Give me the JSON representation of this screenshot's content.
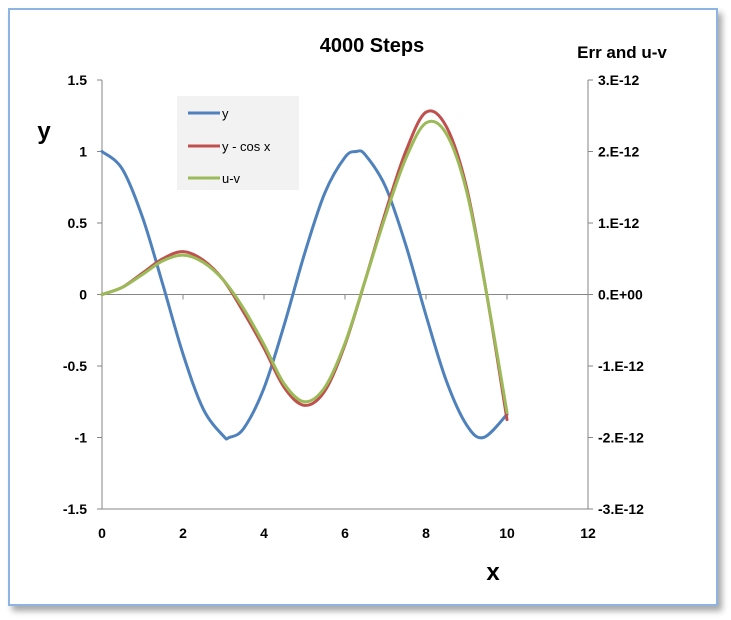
{
  "chart_data": {
    "type": "line",
    "title": "4000 Steps",
    "xlabel": "x",
    "ylabel": "y",
    "y2label": "Err and u-v",
    "xlim": [
      0,
      12
    ],
    "ylim": [
      -1.5,
      1.5
    ],
    "y2lim": [
      -3e-12,
      3e-12
    ],
    "x_ticks": [
      "0",
      "2",
      "4",
      "6",
      "8",
      "10",
      "12"
    ],
    "y_ticks": [
      "1.5",
      "1",
      "0.5",
      "0",
      "-0.5",
      "-1",
      "-1.5"
    ],
    "y2_ticks": [
      "3.E-12",
      "2.E-12",
      "1.E-12",
      "0.E+00",
      "-1.E-12",
      "-2.E-12",
      "-3.E-12"
    ],
    "grid": false,
    "legend_position": "top-left inside",
    "colors": {
      "y": "#4f81bd",
      "y_minus_cos": "#c0504d",
      "u_minus_v": "#9bbb59"
    },
    "series": [
      {
        "name": "y",
        "axis": "left",
        "x": [
          0,
          0.5,
          1,
          1.5,
          2,
          2.5,
          3,
          3.14,
          3.5,
          4,
          4.5,
          5,
          5.5,
          6,
          6.28,
          6.5,
          7,
          7.5,
          8,
          8.5,
          9,
          9.42,
          10
        ],
        "values": [
          1,
          0.878,
          0.54,
          0.071,
          -0.416,
          -0.801,
          -0.99,
          -1.0,
          -0.936,
          -0.654,
          -0.211,
          0.284,
          0.709,
          0.96,
          1.0,
          0.977,
          0.754,
          0.347,
          -0.146,
          -0.602,
          -0.911,
          -1.0,
          -0.839
        ]
      },
      {
        "name": "y - cos x",
        "axis": "right",
        "x": [
          0,
          0.5,
          1,
          1.5,
          2,
          2.5,
          3,
          3.5,
          4,
          4.5,
          5,
          5.5,
          6,
          6.5,
          7,
          7.5,
          8,
          8.5,
          9,
          9.5,
          10
        ],
        "values": [
          0,
          1e-13,
          3e-13,
          5e-13,
          6e-13,
          4.8e-13,
          2e-13,
          -2.5e-13,
          -7.5e-13,
          -1.3e-12,
          -1.55e-12,
          -1.35e-12,
          -7e-13,
          2e-13,
          1.15e-12,
          2e-12,
          2.55e-12,
          2.35e-12,
          1.5e-12,
          0.0,
          -1.75e-12
        ]
      },
      {
        "name": "u-v",
        "axis": "right",
        "x": [
          0,
          0.5,
          1,
          1.5,
          2,
          2.5,
          3,
          3.5,
          4,
          4.5,
          5,
          5.5,
          6,
          6.5,
          7,
          7.5,
          8,
          8.5,
          9,
          9.5,
          10
        ],
        "values": [
          0,
          1e-13,
          2.8e-13,
          4.7e-13,
          5.5e-13,
          4.5e-13,
          2e-13,
          -2e-13,
          -7e-13,
          -1.25e-12,
          -1.5e-12,
          -1.3e-12,
          -6.8e-13,
          2e-13,
          1.1e-12,
          1.9e-12,
          2.4e-12,
          2.25e-12,
          1.45e-12,
          0.0,
          -1.65e-12
        ]
      }
    ]
  }
}
